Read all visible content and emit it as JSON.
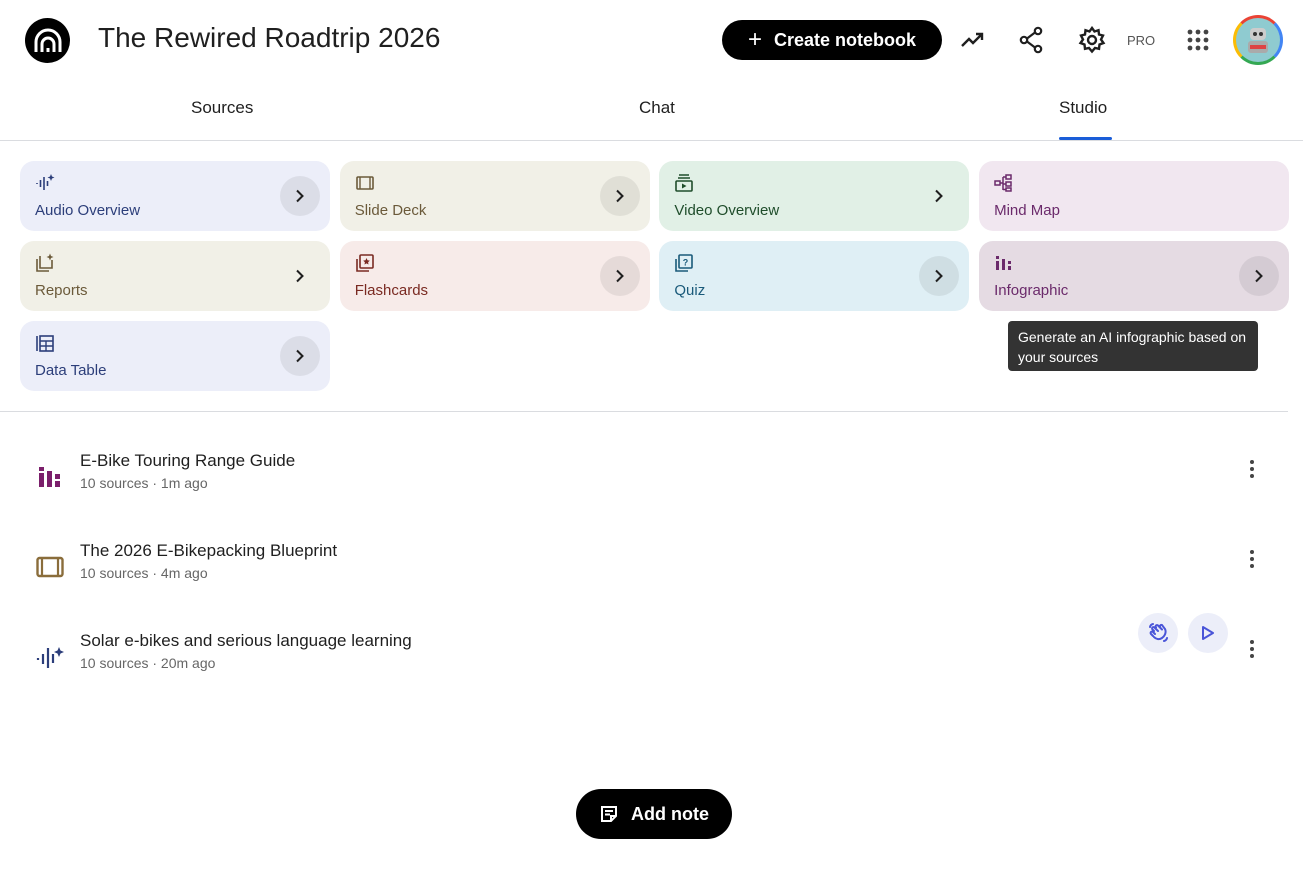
{
  "header": {
    "title": "The Rewired Roadtrip 2026",
    "create_label": "Create notebook",
    "pro_label": "PRO"
  },
  "tabs": [
    {
      "label": "Sources"
    },
    {
      "label": "Chat"
    },
    {
      "label": "Studio",
      "active": true
    }
  ],
  "studio_tools": [
    {
      "label": "Audio Overview",
      "bg": "#eceef9",
      "color": "#2c3e7a"
    },
    {
      "label": "Slide Deck",
      "bg": "#f1f0e7",
      "color": "#6b5a3a"
    },
    {
      "label": "Video Overview",
      "bg": "#e1f0e6",
      "color": "#1f4d2b"
    },
    {
      "label": "Mind Map",
      "bg": "#f1e7f0",
      "color": "#6b2a6b"
    },
    {
      "label": "Reports",
      "bg": "#f1f0e7",
      "color": "#6b5a3a"
    },
    {
      "label": "Flashcards",
      "bg": "#f7ebe9",
      "color": "#7a2a22"
    },
    {
      "label": "Quiz",
      "bg": "#dfeff5",
      "color": "#1a5a7a"
    },
    {
      "label": "Infographic",
      "bg": "#e5dbe3",
      "color": "#6b2a6b"
    },
    {
      "label": "Data Table",
      "bg": "#eceef9",
      "color": "#2c3e7a"
    }
  ],
  "tooltip": {
    "text": "Generate an AI infographic based on your sources"
  },
  "notes": [
    {
      "title": "E-Bike Touring Range Guide",
      "meta": "10 sources · 1m ago",
      "icon": "infographic-icon"
    },
    {
      "title": "The 2026 E-Bikepacking Blueprint",
      "meta": "10 sources · 4m ago",
      "icon": "slide-deck-icon"
    },
    {
      "title": "Solar e-bikes and serious language learning",
      "meta": "10 sources · 20m ago",
      "icon": "audio-overview-icon"
    }
  ],
  "add_note_label": "Add note",
  "colors": {
    "accent": "#1a5dd8",
    "primary_button": "#000000"
  }
}
